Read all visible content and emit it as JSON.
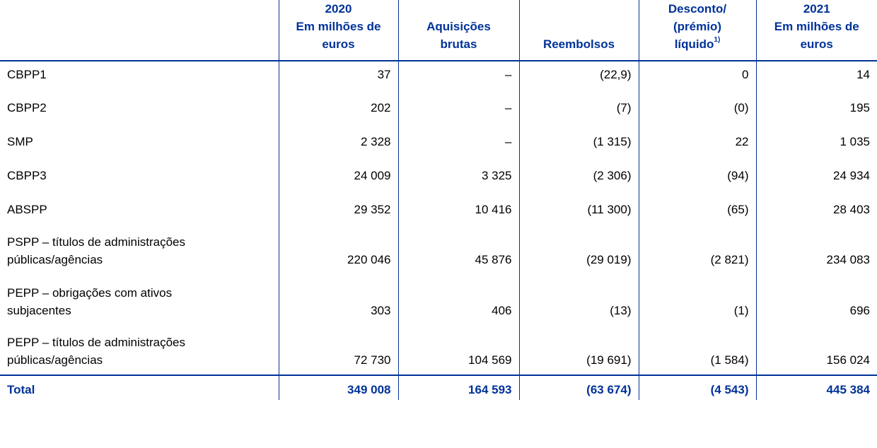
{
  "colors": {
    "accent": "#003299",
    "text": "#000000",
    "background": "#ffffff"
  },
  "header": {
    "col_2020": {
      "line1": "2020",
      "line2": "Em milhões de",
      "line3": "euros"
    },
    "col_acq": {
      "line1": "Aquisições",
      "line2": "brutas"
    },
    "col_reimb": {
      "line1": "Reembolsos"
    },
    "col_disc": {
      "line1": "Desconto/",
      "line2": "(prémio)",
      "line3": "líquido",
      "sup": "1)"
    },
    "col_2021": {
      "line1": "2021",
      "line2": "Em milhões de",
      "line3": "euros"
    }
  },
  "rows": [
    {
      "label_l1": "CBPP1",
      "label_l2": "",
      "v2020": "37",
      "acq": "–",
      "reimb": "(22,9)",
      "disc": "0",
      "v2021": "14"
    },
    {
      "label_l1": "CBPP2",
      "label_l2": "",
      "v2020": "202",
      "acq": "–",
      "reimb": "(7)",
      "disc": "(0)",
      "v2021": "195"
    },
    {
      "label_l1": "SMP",
      "label_l2": "",
      "v2020": "2 328",
      "acq": "–",
      "reimb": "(1 315)",
      "disc": "22",
      "v2021": "1 035"
    },
    {
      "label_l1": "CBPP3",
      "label_l2": "",
      "v2020": "24 009",
      "acq": "3 325",
      "reimb": "(2 306)",
      "disc": "(94)",
      "v2021": "24 934"
    },
    {
      "label_l1": "ABSPP",
      "label_l2": "",
      "v2020": "29 352",
      "acq": "10 416",
      "reimb": "(11 300)",
      "disc": "(65)",
      "v2021": "28 403"
    },
    {
      "label_l1": "PSPP – títulos de administrações",
      "label_l2": "públicas/agências",
      "v2020": "220 046",
      "acq": "45 876",
      "reimb": "(29 019)",
      "disc": "(2 821)",
      "v2021": "234 083"
    },
    {
      "label_l1": "PEPP – obrigações com ativos",
      "label_l2": "subjacentes",
      "v2020": "303",
      "acq": "406",
      "reimb": "(13)",
      "disc": "(1)",
      "v2021": "696"
    },
    {
      "label_l1": "PEPP – títulos de administrações",
      "label_l2": "públicas/agências",
      "v2020": "72 730",
      "acq": "104 569",
      "reimb": "(19 691)",
      "disc": "(1 584)",
      "v2021": "156 024"
    }
  ],
  "total": {
    "label": "Total",
    "v2020": "349 008",
    "acq": "164 593",
    "reimb": "(63 674)",
    "disc": "(4 543)",
    "v2021": "445 384"
  }
}
